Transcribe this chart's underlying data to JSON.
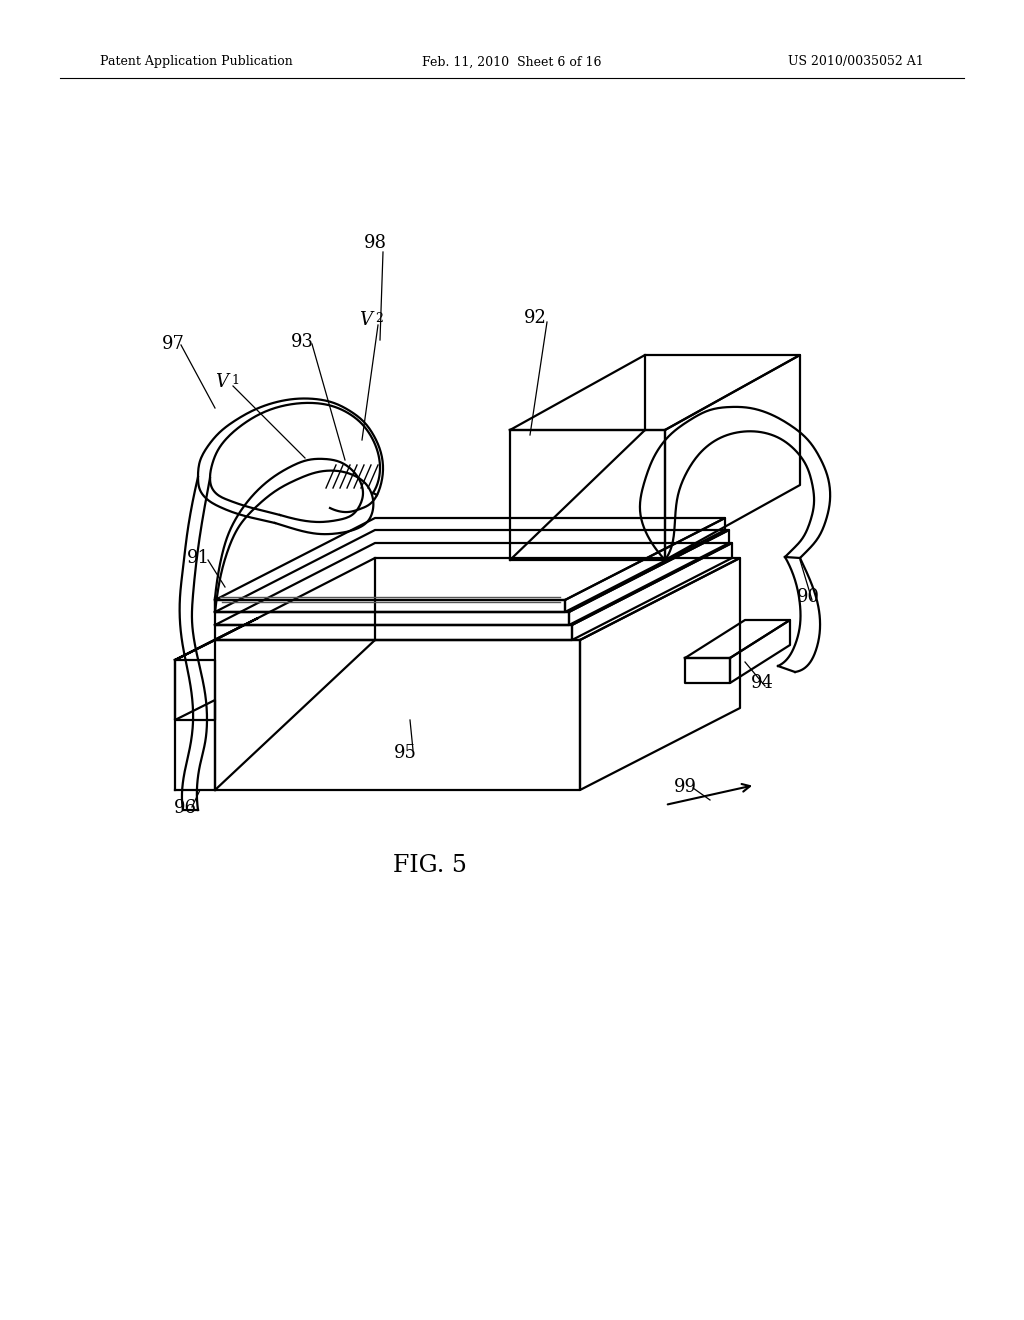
{
  "background_color": "#ffffff",
  "header_left": "Patent Application Publication",
  "header_center": "Feb. 11, 2010  Sheet 6 of 16",
  "header_right": "US 2010/0035052 A1",
  "figure_label": "FIG. 5",
  "line_color": "#000000",
  "line_width": 1.6
}
